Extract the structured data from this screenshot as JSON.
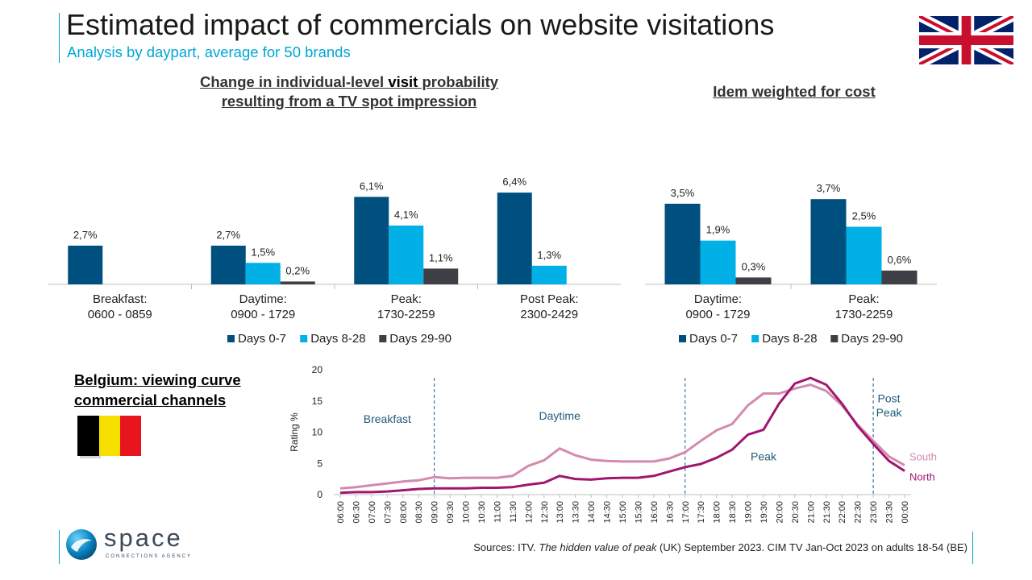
{
  "header": {
    "title": "Estimated impact of commercials on website visitations",
    "subtitle": "Analysis by daypart, average for 50 brands"
  },
  "left_section": {
    "title_line1_a": "Change in individual-level ",
    "title_line1_b": "visit",
    "title_line1_c": " probability",
    "title_line2": "resulting from a TV spot impression"
  },
  "right_section": {
    "title": "Idem weighted for cost"
  },
  "belgium": {
    "title_line1": "Belgium: viewing curve",
    "title_line2": "commercial channels"
  },
  "colors": {
    "days_0_7": "#00507f",
    "days_8_28": "#00b0e6",
    "days_29_90": "#3f3f46",
    "north": "#a0166e",
    "south": "#d48aae",
    "dashed": "#1f5a8a",
    "label": "#1f5a7a"
  },
  "chart_data": [
    {
      "type": "bar",
      "categories": [
        [
          "Breakfast:",
          "0600 - 0859"
        ],
        [
          "Daytime:",
          "0900 - 1729"
        ],
        [
          "Peak:",
          "1730-2259"
        ],
        [
          "Post Peak:",
          "2300-2429"
        ]
      ],
      "series": [
        {
          "name": "Days 0-7",
          "values": [
            2.7,
            2.7,
            6.1,
            6.4
          ],
          "labels": [
            "2,7%",
            "2,7%",
            "6,1%",
            "6,4%"
          ]
        },
        {
          "name": "Days 8-28",
          "values": [
            null,
            1.5,
            4.1,
            1.3
          ],
          "labels": [
            null,
            "1,5%",
            "4,1%",
            "1,3%"
          ]
        },
        {
          "name": "Days 29-90",
          "values": [
            null,
            0.2,
            1.1,
            null
          ],
          "labels": [
            null,
            "0,2%",
            "1,1%",
            null
          ]
        }
      ],
      "legend_position": "bottom"
    },
    {
      "type": "bar",
      "categories": [
        [
          "Daytime:",
          "0900 - 1729"
        ],
        [
          "Peak:",
          "1730-2259"
        ]
      ],
      "series": [
        {
          "name": "Days 0-7",
          "values": [
            3.5,
            3.7
          ],
          "labels": [
            "3,5%",
            "3,7%"
          ]
        },
        {
          "name": "Days 8-28",
          "values": [
            1.9,
            2.5
          ],
          "labels": [
            "1,9%",
            "2,5%"
          ]
        },
        {
          "name": "Days 29-90",
          "values": [
            0.3,
            0.6
          ],
          "labels": [
            "0,3%",
            "0,6%"
          ]
        }
      ],
      "legend_position": "bottom"
    },
    {
      "type": "line",
      "x": [
        "06:00",
        "06:30",
        "07:00",
        "07:30",
        "08:00",
        "08:30",
        "09:00",
        "09:30",
        "10:00",
        "10:30",
        "11:00",
        "11:30",
        "12:00",
        "12:30",
        "13:00",
        "13:30",
        "14:00",
        "14:30",
        "15:00",
        "15:30",
        "16:00",
        "16:30",
        "17:00",
        "17:30",
        "18:00",
        "18:30",
        "19:00",
        "19:30",
        "20:00",
        "20:30",
        "21:00",
        "21:30",
        "22:00",
        "22:30",
        "23:00",
        "23:30",
        "00:00"
      ],
      "series": [
        {
          "name": "South",
          "values": [
            1.0,
            1.2,
            1.5,
            1.8,
            2.1,
            2.3,
            2.8,
            2.6,
            2.7,
            2.7,
            2.7,
            3.0,
            4.6,
            5.5,
            7.4,
            6.3,
            5.6,
            5.4,
            5.3,
            5.3,
            5.3,
            5.8,
            6.8,
            8.6,
            10.3,
            11.3,
            14.3,
            16.2,
            16.2,
            17.0,
            17.6,
            16.6,
            14.3,
            11.2,
            8.6,
            6.1,
            4.7
          ]
        },
        {
          "name": "North",
          "values": [
            0.3,
            0.4,
            0.4,
            0.5,
            0.7,
            0.9,
            1.0,
            1.0,
            1.0,
            1.1,
            1.1,
            1.2,
            1.6,
            1.9,
            3.0,
            2.5,
            2.4,
            2.6,
            2.7,
            2.7,
            3.0,
            3.7,
            4.4,
            4.9,
            5.9,
            7.2,
            9.6,
            10.4,
            14.6,
            17.8,
            18.7,
            17.6,
            14.6,
            11.0,
            8.1,
            5.4,
            3.8
          ]
        }
      ],
      "ylabel": "Rating %",
      "ylim": [
        0,
        20
      ],
      "yticks": [
        "0",
        "5",
        "10",
        "15",
        "20"
      ],
      "annotations": [
        {
          "text": "Breakfast",
          "x": "07:30",
          "y": 11.5
        },
        {
          "text": "Daytime",
          "x": "13:00",
          "y": 12
        },
        {
          "text": "Peak",
          "x": "19:30",
          "y": 5.5
        },
        {
          "text": "Post",
          "x": "23:30",
          "y": 14.8
        },
        {
          "text": "Peak",
          "x": "23:30",
          "y": 12.5
        }
      ],
      "dividers": [
        "09:00",
        "17:00",
        "23:00"
      ],
      "series_labels": [
        {
          "series": "South",
          "text": "South"
        },
        {
          "series": "North",
          "text": "North"
        }
      ]
    }
  ],
  "source": {
    "prefix": "Sources: ITV. ",
    "italic": "The hidden value of peak",
    "suffix": " (UK) September 2023. CIM TV Jan-Oct 2023 on adults 18-54 (BE)"
  },
  "logo": {
    "word": "space",
    "tagline": "CONNECTIONS AGENCY"
  }
}
